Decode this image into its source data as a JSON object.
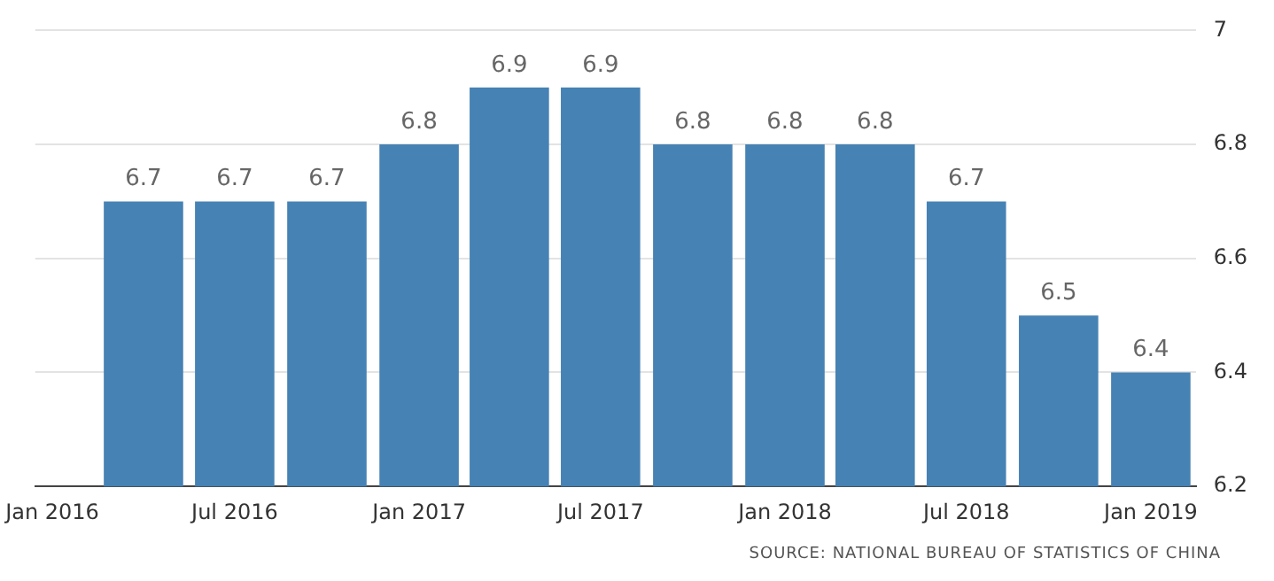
{
  "chart_data": {
    "type": "bar",
    "x": [
      "2016-04",
      "2016-07",
      "2016-10",
      "2017-01",
      "2017-04",
      "2017-07",
      "2017-10",
      "2018-01",
      "2018-04",
      "2018-07",
      "2018-10",
      "2019-01"
    ],
    "values": [
      6.7,
      6.7,
      6.7,
      6.8,
      6.9,
      6.9,
      6.8,
      6.8,
      6.8,
      6.7,
      6.5,
      6.4
    ],
    "color": "#4682b4",
    "xlim": [
      "2015-12-15",
      "2019-02-15"
    ],
    "xticks": [
      {
        "value": "2016-01",
        "label": "Jan 2016"
      },
      {
        "value": "2016-07",
        "label": "Jul 2016"
      },
      {
        "value": "2017-01",
        "label": "Jan 2017"
      },
      {
        "value": "2017-07",
        "label": "Jul 2017"
      },
      {
        "value": "2018-01",
        "label": "Jan 2018"
      },
      {
        "value": "2018-07",
        "label": "Jul 2018"
      },
      {
        "value": "2019-01",
        "label": "Jan 2019"
      }
    ],
    "ylim": [
      6.2,
      7
    ],
    "yticks": [
      6.2,
      6.4,
      6.6,
      6.8,
      7
    ],
    "grid": "y",
    "data_labels": true,
    "legend": false,
    "annotations": [
      "SOURCE: NATIONAL BUREAU OF STATISTICS OF CHINA"
    ]
  }
}
